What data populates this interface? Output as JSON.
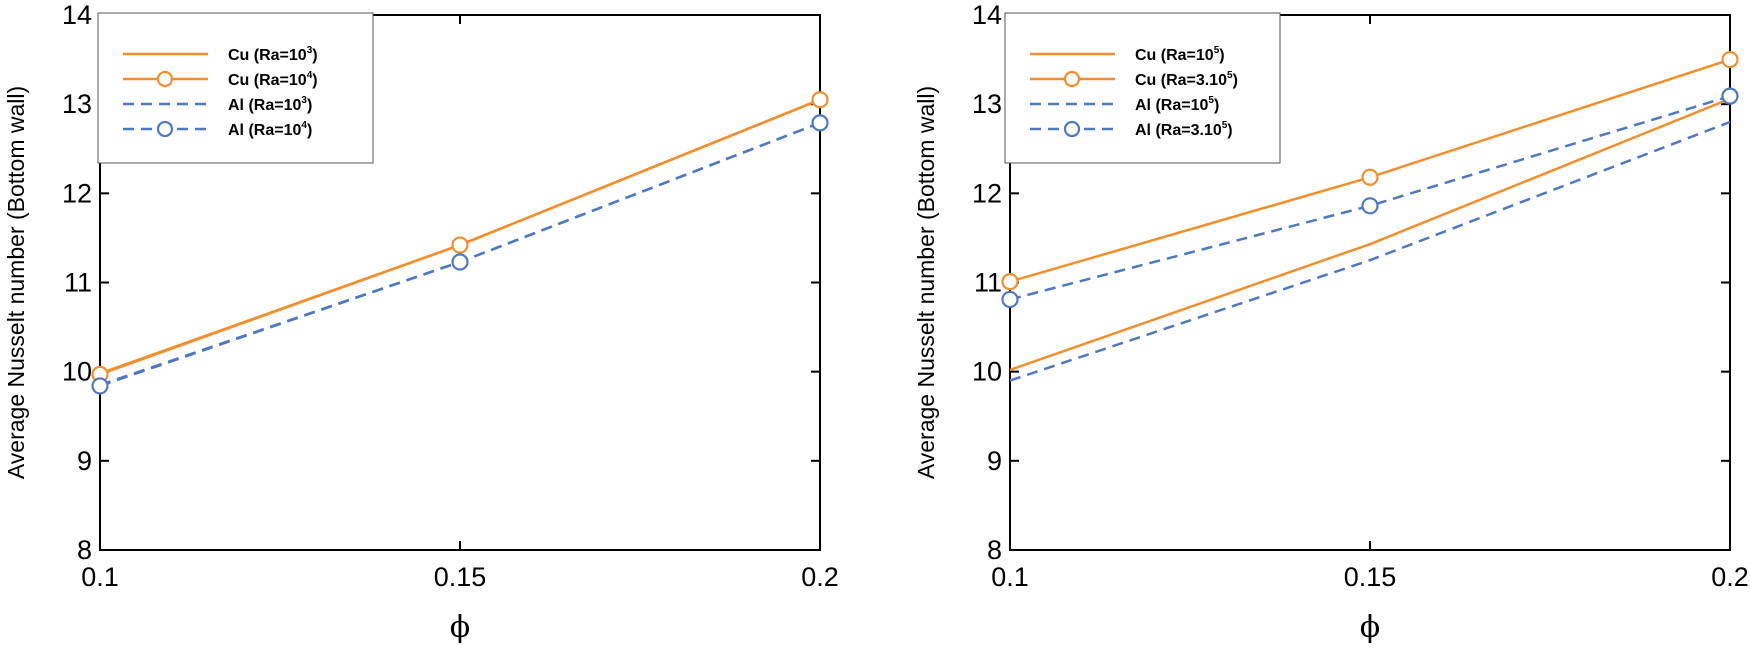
{
  "chart_data": [
    {
      "type": "line",
      "title": "",
      "xlabel": "ϕ",
      "ylabel": "Average Nusselt number (Bottom wall)",
      "x": [
        0.1,
        0.15,
        0.2
      ],
      "x_tick_labels": [
        "0.1",
        "0.15",
        "0.2"
      ],
      "xlim": [
        0.1,
        0.2
      ],
      "ylim": [
        8,
        14
      ],
      "y_tick_labels": [
        "8",
        "9",
        "10",
        "11",
        "12",
        "13",
        "14"
      ],
      "legend_position": "top-left",
      "series": [
        {
          "name": "Cu (Ra=10^3)",
          "legend_base": "Cu (Ra=10",
          "legend_sup": "3",
          "legend_tail": ")",
          "values": [
            9.98,
            11.42,
            13.05
          ],
          "color": "#F28E2B",
          "dashed": false,
          "markers": false
        },
        {
          "name": "Cu (Ra=10^4)",
          "legend_base": "Cu (Ra=10",
          "legend_sup": "4",
          "legend_tail": ")",
          "values": [
            9.97,
            11.42,
            13.05
          ],
          "color": "#F28E2B",
          "dashed": false,
          "markers": true
        },
        {
          "name": "Al (Ra=10^3)",
          "legend_base": "Al (Ra=10",
          "legend_sup": "3",
          "legend_tail": ")",
          "values": [
            9.85,
            11.23,
            12.79
          ],
          "color": "#4E79C2",
          "dashed": true,
          "markers": false
        },
        {
          "name": "Al (Ra=10^4)",
          "legend_base": "Al (Ra=10",
          "legend_sup": "4",
          "legend_tail": ")",
          "values": [
            9.84,
            11.23,
            12.79
          ],
          "color": "#4E79C2",
          "dashed": true,
          "markers": true
        }
      ]
    },
    {
      "type": "line",
      "title": "",
      "xlabel": "ϕ",
      "ylabel": "Average Nusselt number (Bottom wall)",
      "x": [
        0.1,
        0.15,
        0.2
      ],
      "x_tick_labels": [
        "0.1",
        "0.15",
        "0.2"
      ],
      "xlim": [
        0.1,
        0.2
      ],
      "ylim": [
        8,
        14
      ],
      "y_tick_labels": [
        "8",
        "9",
        "10",
        "11",
        "12",
        "13",
        "14"
      ],
      "legend_position": "top-left",
      "series": [
        {
          "name": "Cu (Ra=10^5)",
          "legend_base": "Cu (Ra=10",
          "legend_sup": "5",
          "legend_tail": ")",
          "values": [
            10.02,
            11.43,
            13.06
          ],
          "color": "#F28E2B",
          "dashed": false,
          "markers": false
        },
        {
          "name": "Cu (Ra=3.10^5)",
          "legend_base": "Cu (Ra=3.10",
          "legend_sup": "5",
          "legend_tail": ")",
          "values": [
            11.01,
            12.18,
            13.5
          ],
          "color": "#F28E2B",
          "dashed": false,
          "markers": true
        },
        {
          "name": "Al (Ra=10^5)",
          "legend_base": "Al (Ra=10",
          "legend_sup": "5",
          "legend_tail": ")",
          "values": [
            9.9,
            11.25,
            12.8
          ],
          "color": "#4E79C2",
          "dashed": true,
          "markers": false
        },
        {
          "name": "Al (Ra=3.10^5)",
          "legend_base": "Al (Ra=3.10",
          "legend_sup": "5",
          "legend_tail": ")",
          "values": [
            10.81,
            11.86,
            13.09
          ],
          "color": "#4E79C2",
          "dashed": true,
          "markers": true
        }
      ]
    }
  ]
}
